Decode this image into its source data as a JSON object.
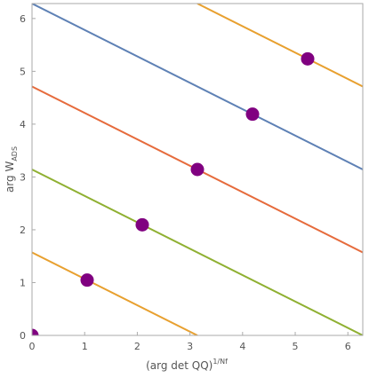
{
  "chart_data": {
    "type": "line",
    "title": "",
    "xlabel": "(arg det QQ)",
    "xlabel_superscript": "1/Nf",
    "ylabel": "arg W",
    "ylabel_subscript": "ADS",
    "xlim": [
      0,
      6.2832
    ],
    "ylim": [
      0,
      6.2832
    ],
    "x_ticks": [
      0,
      1,
      2,
      3,
      4,
      5,
      6
    ],
    "y_ticks": [
      0,
      1,
      2,
      3,
      4,
      5,
      6
    ],
    "grid": false,
    "legend": "none",
    "series": [
      {
        "color": "#e8a02f",
        "x": [
          0,
          3.1416
        ],
        "y": [
          1.5708,
          0
        ]
      },
      {
        "color": "#8fb032",
        "x": [
          0,
          6.2832
        ],
        "y": [
          3.1416,
          0
        ]
      },
      {
        "color": "#e66b3c",
        "x": [
          0,
          6.2832
        ],
        "y": [
          4.7124,
          1.5708
        ]
      },
      {
        "color": "#5e81b5",
        "x": [
          0,
          6.2832
        ],
        "y": [
          6.2832,
          3.1416
        ]
      },
      {
        "color": "#e8a02f",
        "x": [
          3.1416,
          6.2832
        ],
        "y": [
          6.2832,
          4.7124
        ]
      }
    ],
    "points": {
      "color": "#800080",
      "x": [
        0,
        1.0472,
        2.0944,
        3.1416,
        4.1888,
        5.236
      ],
      "y": [
        0,
        1.0472,
        2.0944,
        3.1416,
        4.1888,
        5.236
      ]
    }
  }
}
